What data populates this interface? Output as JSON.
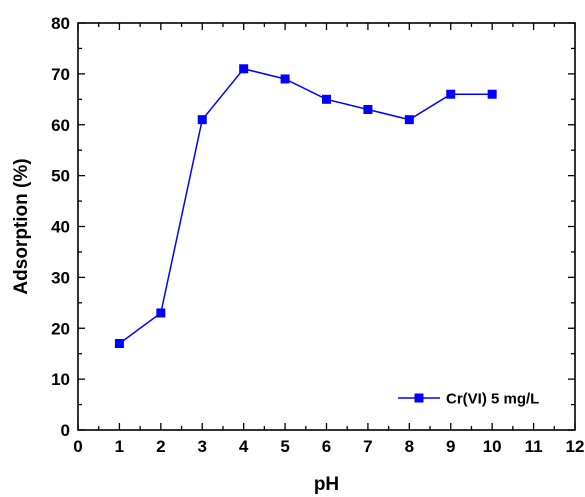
{
  "chart_data": {
    "type": "line",
    "title": "",
    "xlabel": "pH",
    "ylabel": "Adsorption (%)",
    "xlim": [
      0,
      12
    ],
    "ylim": [
      0,
      80
    ],
    "x_ticks": [
      "0",
      "1",
      "2",
      "3",
      "4",
      "5",
      "6",
      "7",
      "8",
      "9",
      "10",
      "11",
      "12"
    ],
    "y_ticks": [
      "0",
      "10",
      "20",
      "30",
      "40",
      "50",
      "60",
      "70",
      "80"
    ],
    "x_tick_values": [
      0,
      1,
      2,
      3,
      4,
      5,
      6,
      7,
      8,
      9,
      10,
      11,
      12
    ],
    "y_tick_values": [
      0,
      10,
      20,
      30,
      40,
      50,
      60,
      70,
      80
    ],
    "grid": false,
    "legend_position": "bottom-right",
    "series": [
      {
        "name": "Cr(VI) 5 mg/L",
        "color": "#0000ff",
        "marker": "square",
        "x": [
          1,
          2,
          3,
          4,
          5,
          6,
          7,
          8,
          9,
          10
        ],
        "y": [
          17,
          23,
          61,
          71,
          69,
          65,
          63,
          61,
          66,
          66
        ]
      }
    ]
  }
}
